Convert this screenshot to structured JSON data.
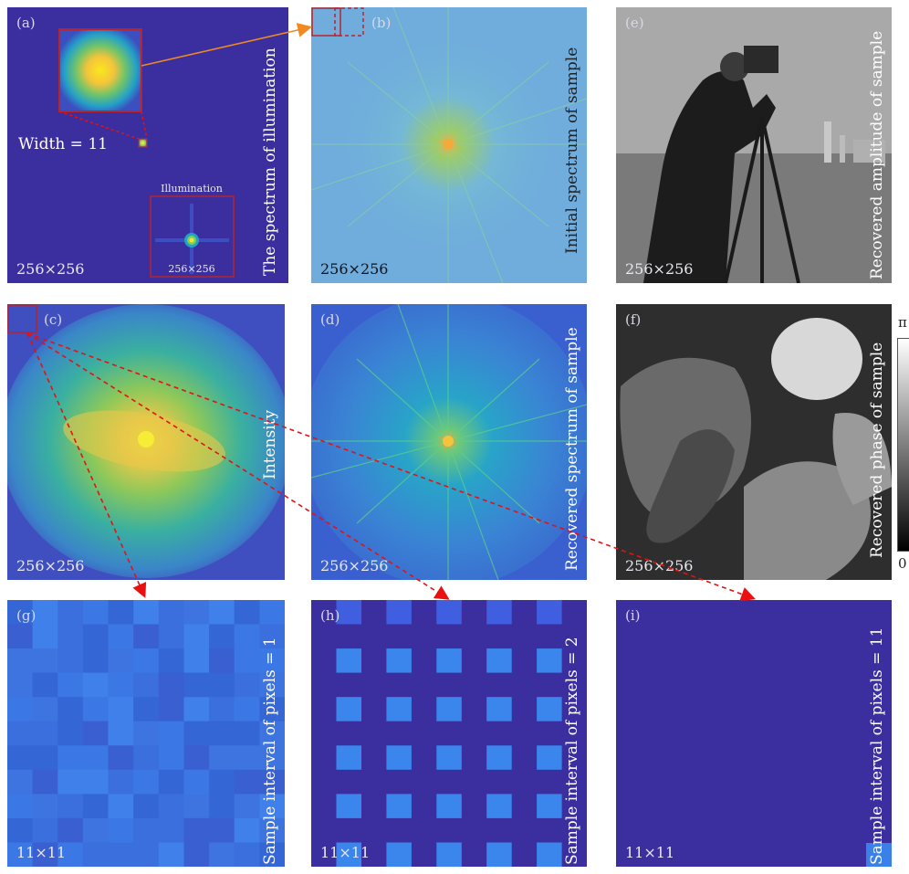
{
  "panels": {
    "a": {
      "tag": "(a)",
      "size": "256×256",
      "width_label": "Width = 11",
      "inset_title": "Illumination",
      "inset_size": "256×256",
      "side_label": "The spectrum of illumination"
    },
    "b": {
      "tag": "(b)",
      "size": "256×256",
      "side_label": "Initial spectrum of sample"
    },
    "e": {
      "tag": "(e)",
      "size": "256×256",
      "side_label": "Recovered amplitude of sample"
    },
    "c": {
      "tag": "(c)",
      "size": "256×256",
      "side_label": "Intensity"
    },
    "d": {
      "tag": "(d)",
      "size": "256×256",
      "side_label": "Recovered spectrum of sample"
    },
    "f": {
      "tag": "(f)",
      "size": "256×256",
      "side_label": "Recovered phase of sample"
    },
    "g": {
      "tag": "(g)",
      "size": "11×11",
      "side_label": "Sample interval of pixels = 1"
    },
    "h": {
      "tag": "(h)",
      "size": "11×11",
      "side_label": "Sample interval of pixels = 2"
    },
    "i": {
      "tag": "(i)",
      "size": "11×11",
      "side_label": "Sample interval of pixels = 11"
    }
  },
  "colorbar": {
    "max": "π",
    "min": "0"
  },
  "colors": {
    "dark_blue": "#3b2fa0",
    "highlight": "#b8242b",
    "arrow_red": "#e81010",
    "arrow_orange": "#f08a20"
  }
}
